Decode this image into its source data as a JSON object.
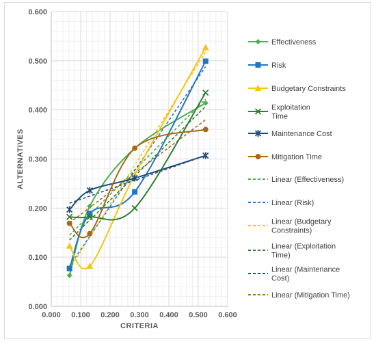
{
  "chart_data": {
    "type": "line",
    "title": "",
    "xlabel": "CRITERIA",
    "ylabel": "ALTERNATIVES",
    "xlim": [
      0,
      0.6
    ],
    "ylim": [
      0,
      0.6
    ],
    "x_ticks": [
      "0.000",
      "0.100",
      "0.200",
      "0.300",
      "0.400",
      "0.500",
      "0.600"
    ],
    "y_ticks": [
      "0.000",
      "0.100",
      "0.200",
      "0.300",
      "0.400",
      "0.500",
      "0.600"
    ],
    "grid": true,
    "legend_position": "right",
    "series": [
      {
        "name": "Effectiveness",
        "color": "#4caf50",
        "marker": "diamond",
        "x": [
          0.062,
          0.131,
          0.284,
          0.525
        ],
        "y": [
          0.063,
          0.204,
          0.322,
          0.414
        ]
      },
      {
        "name": "Risk",
        "color": "#1f77c4",
        "marker": "square",
        "x": [
          0.062,
          0.131,
          0.284,
          0.525
        ],
        "y": [
          0.077,
          0.189,
          0.233,
          0.499
        ]
      },
      {
        "name": "Budgetary Constraints",
        "color": "#f5c518",
        "marker": "triangle",
        "x": [
          0.062,
          0.131,
          0.284,
          0.525
        ],
        "y": [
          0.123,
          0.082,
          0.268,
          0.527
        ]
      },
      {
        "name": "Exploitation\nTime",
        "color": "#2e7d32",
        "marker": "x",
        "x": [
          0.062,
          0.131,
          0.284,
          0.525
        ],
        "y": [
          0.182,
          0.182,
          0.2,
          0.435
        ]
      },
      {
        "name": "Maintenance Cost",
        "color": "#1f4e79",
        "marker": "star",
        "x": [
          0.062,
          0.131,
          0.284,
          0.525
        ],
        "y": [
          0.197,
          0.236,
          0.261,
          0.307
        ]
      },
      {
        "name": "Mitigation Time",
        "color": "#a66a17",
        "marker": "circle",
        "x": [
          0.062,
          0.131,
          0.284,
          0.525
        ],
        "y": [
          0.169,
          0.148,
          0.322,
          0.36
        ]
      }
    ],
    "trendlines": [
      {
        "name": "Linear (Effectiveness)",
        "color": "#4caf50",
        "x": [
          0.062,
          0.525
        ],
        "y": [
          0.145,
          0.422
        ]
      },
      {
        "name": "Linear (Risk)",
        "color": "#1f77c4",
        "x": [
          0.062,
          0.525
        ],
        "y": [
          0.082,
          0.488
        ]
      },
      {
        "name": "Linear (Budgetary\nConstraints)",
        "color": "#f5c518",
        "x": [
          0.062,
          0.525
        ],
        "y": [
          0.075,
          0.518
        ]
      },
      {
        "name": "Linear (Exploitation\nTime)",
        "color": "#2e7d32",
        "x": [
          0.062,
          0.525
        ],
        "y": [
          0.135,
          0.407
        ]
      },
      {
        "name": "Linear (Maintenance\nCost)",
        "color": "#1f4e79",
        "x": [
          0.062,
          0.525
        ],
        "y": [
          0.21,
          0.307
        ]
      },
      {
        "name": "Linear (Mitigation Time)",
        "color": "#a66a17",
        "x": [
          0.062,
          0.525
        ],
        "y": [
          0.17,
          0.38
        ]
      }
    ]
  }
}
